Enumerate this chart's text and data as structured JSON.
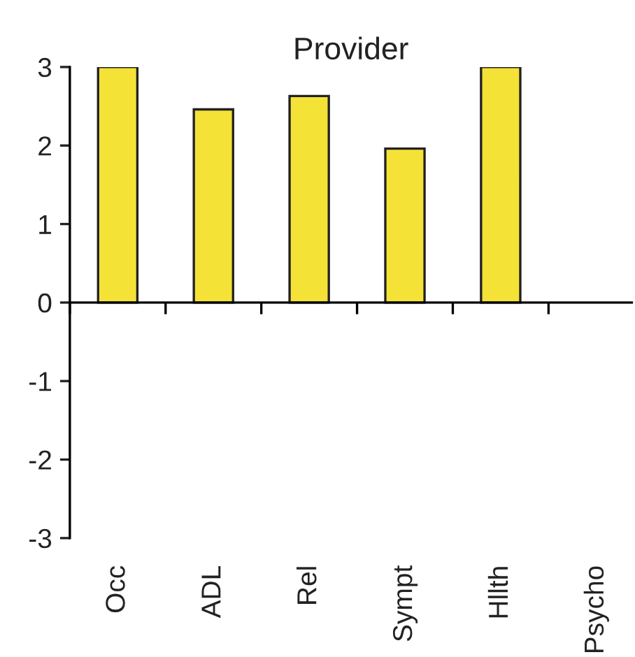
{
  "chart_data": {
    "type": "bar",
    "title": "Provider",
    "categories": [
      "Occ",
      "ADL",
      "Rel",
      "Sympt",
      "Hllth",
      "Psycho"
    ],
    "values": [
      3.0,
      2.46,
      2.63,
      1.96,
      3.0,
      null
    ],
    "color": "#f5e236",
    "ylim": [
      -3,
      3
    ],
    "yticks": [
      -3,
      -2,
      -1,
      0,
      1,
      2,
      3
    ]
  }
}
